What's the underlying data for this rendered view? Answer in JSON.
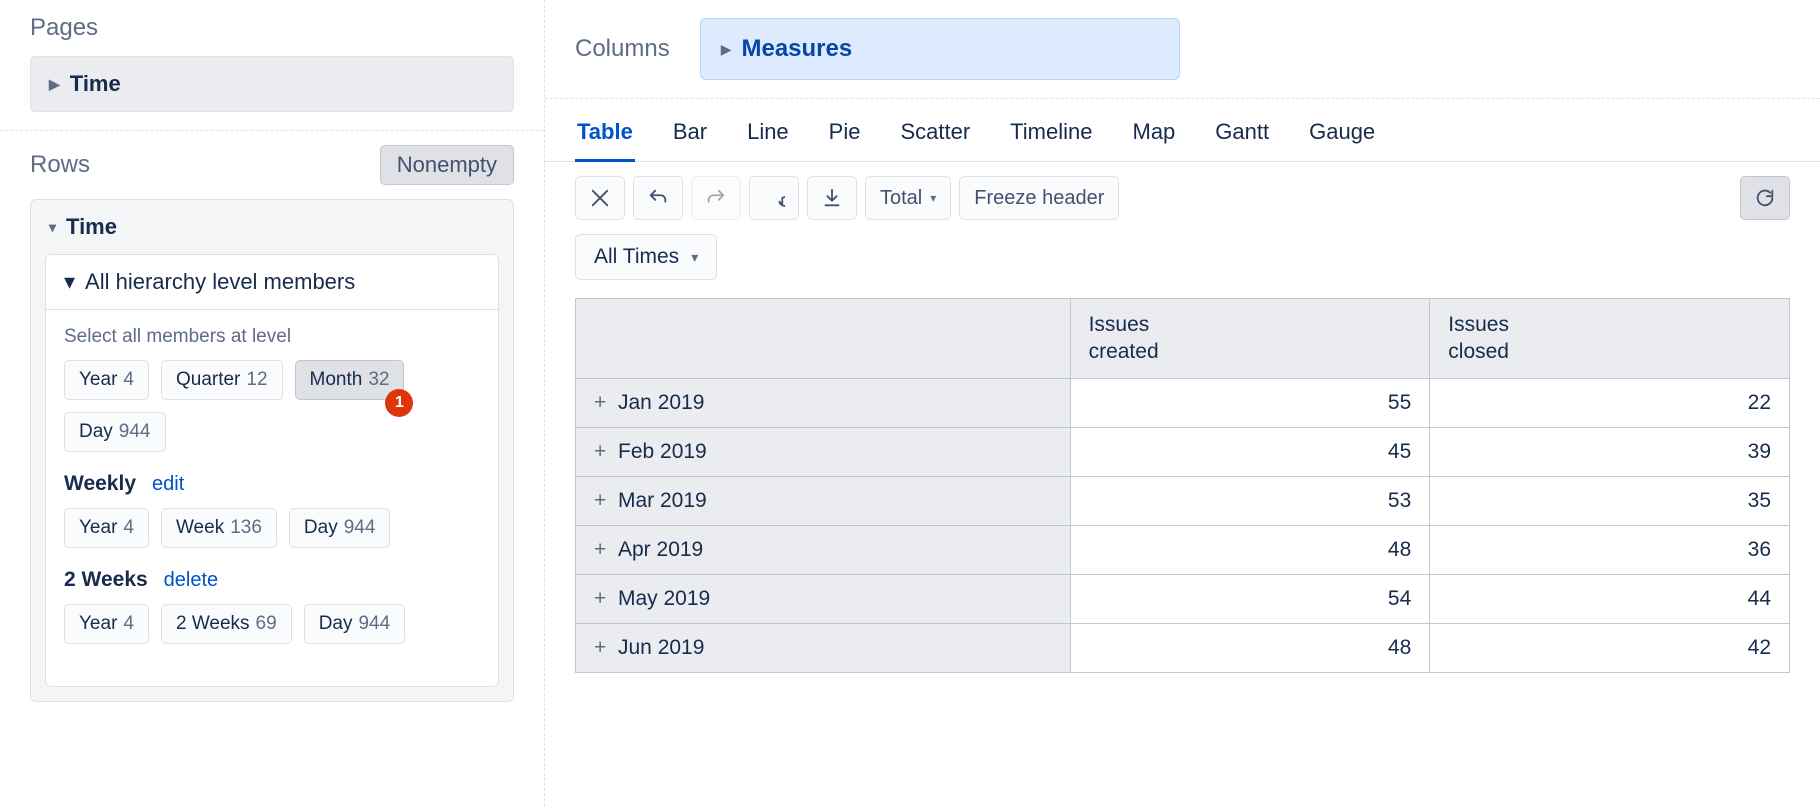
{
  "pages": {
    "title": "Pages",
    "pill_label": "Time"
  },
  "rows": {
    "title": "Rows",
    "nonempty_label": "Nonempty",
    "time_label": "Time",
    "hierarchy_label": "All hierarchy level members",
    "select_all_label": "Select all members at level",
    "default_levels": [
      {
        "label": "Year",
        "count": "4",
        "active": false
      },
      {
        "label": "Quarter",
        "count": "12",
        "active": false
      },
      {
        "label": "Month",
        "count": "32",
        "active": true,
        "badge": "1"
      },
      {
        "label": "Day",
        "count": "944",
        "active": false
      }
    ],
    "groups": [
      {
        "title": "Weekly",
        "action": "edit",
        "levels": [
          {
            "label": "Year",
            "count": "4"
          },
          {
            "label": "Week",
            "count": "136"
          },
          {
            "label": "Day",
            "count": "944"
          }
        ]
      },
      {
        "title": "2 Weeks",
        "action": "delete",
        "levels": [
          {
            "label": "Year",
            "count": "4"
          },
          {
            "label": "2 Weeks",
            "count": "69"
          },
          {
            "label": "Day",
            "count": "944"
          }
        ]
      }
    ]
  },
  "columns": {
    "title": "Columns",
    "measures_label": "Measures"
  },
  "viz_tabs": [
    "Table",
    "Bar",
    "Line",
    "Pie",
    "Scatter",
    "Timeline",
    "Map",
    "Gantt",
    "Gauge"
  ],
  "viz_active": "Table",
  "toolbar": {
    "total_label": "Total",
    "freeze_label": "Freeze header"
  },
  "filter": {
    "label": "All Times"
  },
  "table": {
    "columns": [
      "Issues created",
      "Issues closed"
    ],
    "rows": [
      {
        "label": "Jan 2019",
        "values": [
          55,
          22
        ]
      },
      {
        "label": "Feb 2019",
        "values": [
          45,
          39
        ]
      },
      {
        "label": "Mar 2019",
        "values": [
          53,
          35
        ]
      },
      {
        "label": "Apr 2019",
        "values": [
          48,
          36
        ]
      },
      {
        "label": "May 2019",
        "values": [
          54,
          44
        ]
      },
      {
        "label": "Jun 2019",
        "values": [
          48,
          42
        ]
      }
    ]
  }
}
